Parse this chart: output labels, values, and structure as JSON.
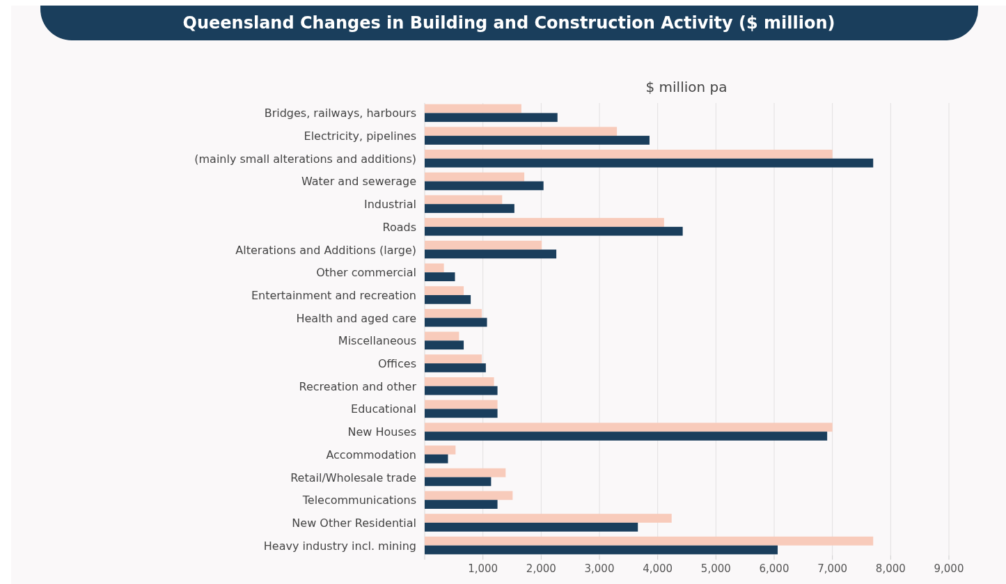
{
  "chart_data": {
    "type": "bar",
    "orientation": "horizontal",
    "title": "Queensland Changes in Building and Construction Activity ($ million)",
    "xlabel": "$ million pa",
    "categories": [
      "Bridges, railways, harbours",
      "Electricity, pipelines",
      "(mainly small alterations and additions)",
      "Water and sewerage",
      "Industrial",
      "Roads",
      "Alterations and Additions (large)",
      "Other commercial",
      "Entertainment and recreation",
      "Health and aged care",
      "Miscellaneous",
      "Offices",
      "Recreation and other",
      "Educational",
      "New Houses",
      "Accommodation",
      "Retail/Wholesale trade",
      "Telecommunications",
      "New Other Residential",
      "Heavy industry incl. mining"
    ],
    "series": [
      {
        "color": "#f8cbbb",
        "values": [
          1660,
          3300,
          7000,
          1710,
          1330,
          4110,
          2010,
          330,
          670,
          980,
          590,
          980,
          1190,
          1250,
          7000,
          530,
          1390,
          1510,
          4240,
          7700
        ]
      },
      {
        "color": "#1a3e5c",
        "values": [
          2280,
          3860,
          7700,
          2040,
          1540,
          4430,
          2260,
          520,
          790,
          1070,
          670,
          1050,
          1250,
          1250,
          6910,
          400,
          1140,
          1250,
          3660,
          6060
        ]
      }
    ],
    "xlim": [
      0,
      9000
    ],
    "xticks": [
      {
        "value": 0,
        "label": null
      },
      {
        "value": 1000,
        "label": "1,000"
      },
      {
        "value": 2000,
        "label": "2,000"
      },
      {
        "value": 3000,
        "label": "3,000"
      },
      {
        "value": 4000,
        "label": "4,000"
      },
      {
        "value": 5000,
        "label": "5,000"
      },
      {
        "value": 6000,
        "label": "6,000"
      },
      {
        "value": 7000,
        "label": "7,000"
      },
      {
        "value": 8000,
        "label": "8,000"
      },
      {
        "value": 9000,
        "label": "9,000"
      }
    ],
    "grid": "x"
  }
}
